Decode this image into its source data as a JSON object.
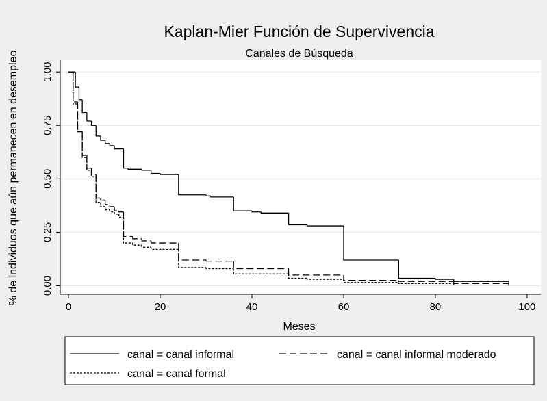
{
  "chart_data": {
    "type": "step",
    "title": "Kaplan-Mier Función de Supervivencia",
    "subtitle": "Canales de Búsqueda",
    "x_label": "Meses",
    "y_label": "% de individuos que aún permanecen en desempleo",
    "xlim": [
      -1.8,
      103
    ],
    "ylim": [
      -0.04,
      1.055
    ],
    "xticks": [
      0,
      20,
      40,
      60,
      80,
      100
    ],
    "yticks": [
      {
        "value": 0,
        "label": "0.00"
      },
      {
        "value": 0.25,
        "label": "0.25"
      },
      {
        "value": 0.5,
        "label": "0.50"
      },
      {
        "value": 0.75,
        "label": "0.75"
      },
      {
        "value": 1,
        "label": "1.00"
      }
    ],
    "grid": true,
    "legend": "bottom",
    "series": [
      {
        "name": "canal = canal informal",
        "color": "#000000",
        "dash": "solid",
        "x": [
          0,
          1.5,
          2.3,
          3,
          4,
          5,
          6,
          7,
          8,
          9,
          10,
          12,
          13,
          16,
          18,
          20,
          24,
          30,
          31,
          36,
          40,
          42,
          48,
          52,
          60,
          72,
          80,
          84,
          96
        ],
        "values": [
          1,
          0.93,
          0.87,
          0.81,
          0.77,
          0.75,
          0.7,
          0.68,
          0.665,
          0.655,
          0.64,
          0.55,
          0.545,
          0.54,
          0.525,
          0.52,
          0.425,
          0.42,
          0.415,
          0.35,
          0.345,
          0.34,
          0.285,
          0.28,
          0.12,
          0.035,
          0.03,
          0.02,
          0
        ]
      },
      {
        "name": "canal = canal informal moderado",
        "color": "#000000",
        "dash": "dashed",
        "x": [
          0,
          1,
          2,
          3,
          4,
          5,
          6,
          7,
          8,
          9,
          10,
          11,
          12,
          14,
          16,
          18,
          24,
          30,
          36,
          48,
          60,
          72,
          84,
          96
        ],
        "values": [
          1,
          0.86,
          0.72,
          0.61,
          0.55,
          0.52,
          0.41,
          0.4,
          0.38,
          0.37,
          0.35,
          0.345,
          0.23,
          0.22,
          0.21,
          0.2,
          0.12,
          0.115,
          0.08,
          0.05,
          0.025,
          0.02,
          0.01,
          0.005
        ]
      },
      {
        "name": "canal = canal formal",
        "color": "#000000",
        "dash": "dotted",
        "x": [
          0,
          1,
          2,
          3,
          4,
          5,
          6,
          7,
          8,
          9,
          10,
          11,
          12,
          14,
          16,
          18,
          24,
          30,
          36,
          48,
          52,
          60,
          72,
          84
        ],
        "values": [
          1,
          0.85,
          0.72,
          0.6,
          0.54,
          0.51,
          0.39,
          0.37,
          0.355,
          0.345,
          0.335,
          0.32,
          0.2,
          0.19,
          0.18,
          0.17,
          0.085,
          0.08,
          0.055,
          0.035,
          0.03,
          0.015,
          0.01,
          0.005
        ]
      }
    ]
  }
}
